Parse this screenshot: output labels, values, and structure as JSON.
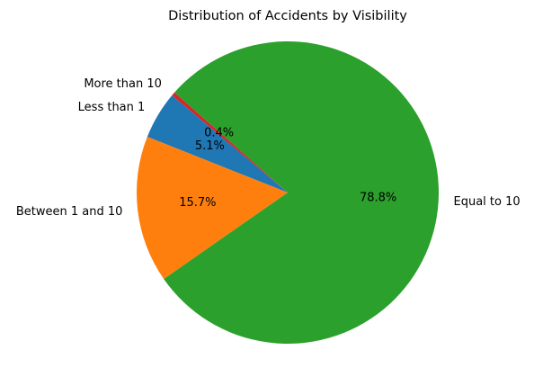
{
  "chart_data": {
    "type": "pie",
    "title": "Distribution of Accidents by Visibility",
    "categories": [
      "Less than 1",
      "Between 1 and 10",
      "Equal to 10",
      "More than 10"
    ],
    "values": [
      5.1,
      15.7,
      78.8,
      0.4
    ],
    "percent_labels": [
      "5.1%",
      "15.7%",
      "78.8%",
      "0.4%"
    ],
    "colors": [
      "#1f77b4",
      "#ff7f0e",
      "#2ca02c",
      "#d62728"
    ],
    "start_angle_deg": 140,
    "direction": "counterclockwise",
    "legend": "none",
    "grid": false
  }
}
